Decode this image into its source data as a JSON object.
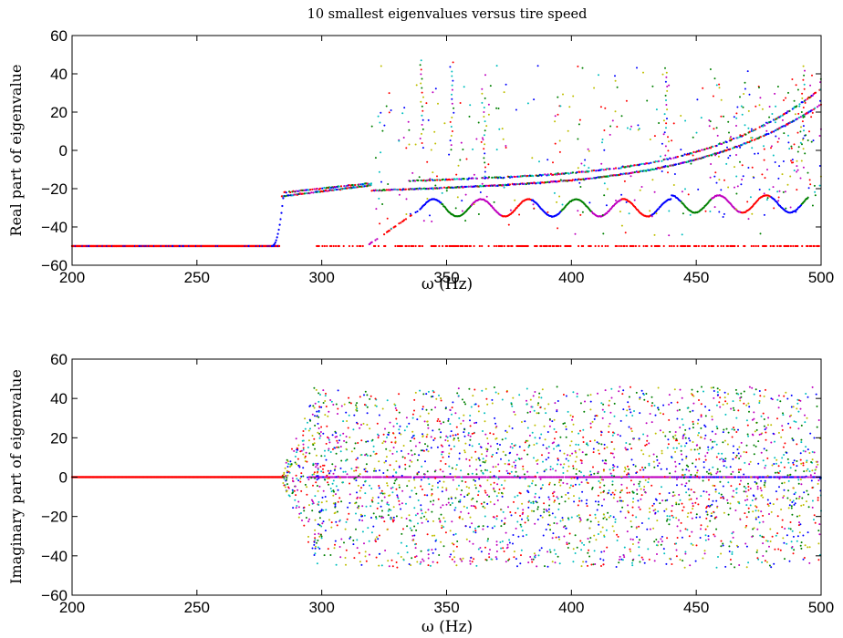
{
  "title": "10 smallest eigenvalues versus tire speed",
  "colors": {
    "palette": [
      "#0000ff",
      "#008000",
      "#ff0000",
      "#00bfbf",
      "#bf00bf",
      "#bfbf00",
      "#404040"
    ]
  },
  "chart_data": [
    {
      "type": "scatter",
      "title": "10 smallest eigenvalues versus tire speed",
      "xlabel": "ω (Hz)",
      "ylabel": "Real part of eigenvalue",
      "xlim": [
        200,
        500
      ],
      "ylim": [
        -60,
        60
      ],
      "xticks": [
        "200",
        "250",
        "300",
        "350",
        "400",
        "450",
        "500"
      ],
      "yticks": [
        "60",
        "40",
        "20",
        "0",
        "−20",
        "−40",
        "−60"
      ],
      "grid": false,
      "series": [
        {
          "x": [
            200,
            220,
            240,
            260,
            282
          ],
          "y": [
            -50,
            -50,
            -50,
            -50,
            -50
          ]
        },
        {
          "x": [
            283,
            287,
            292,
            297,
            300,
            310,
            320,
            330
          ],
          "y": [
            -25,
            -24,
            -23,
            -22,
            -21,
            -20,
            -19,
            -18
          ]
        },
        {
          "x": [
            320,
            340,
            360,
            380,
            400,
            420,
            440,
            460,
            480,
            500
          ],
          "y": [
            -21,
            -17,
            -14,
            -12,
            -10,
            -8,
            -5,
            -2,
            5,
            25
          ]
        },
        {
          "x": [
            320,
            335,
            350,
            365,
            380,
            395,
            410,
            425,
            440,
            455,
            470,
            485,
            500
          ],
          "y": [
            -48,
            -35,
            -38,
            -30,
            -25,
            -28,
            -26,
            -27,
            -25,
            -24,
            -25,
            -22,
            -20
          ]
        },
        {
          "x": [
            300,
            330,
            360,
            390,
            420,
            450,
            480,
            500
          ],
          "y": [
            -50,
            -50,
            -50,
            -50,
            -50,
            -50,
            -50,
            -50
          ]
        }
      ]
    },
    {
      "type": "scatter",
      "xlabel": "ω (Hz)",
      "ylabel": "Imaginary part of eigenvalue",
      "xlim": [
        200,
        500
      ],
      "ylim": [
        -60,
        60
      ],
      "xticks": [
        "200",
        "250",
        "300",
        "350",
        "400",
        "450",
        "500"
      ],
      "yticks": [
        "60",
        "40",
        "20",
        "0",
        "−20",
        "−40",
        "−60"
      ],
      "grid": false,
      "series": [
        {
          "x": [
            200,
            250,
            285,
            300,
            350,
            400,
            450,
            500
          ],
          "y": [
            0,
            0,
            0,
            0,
            0,
            0,
            0,
            0
          ]
        },
        {
          "x": [
            285,
            290,
            295
          ],
          "y": [
            0,
            30,
            -30
          ]
        },
        {
          "x": [
            300,
            350,
            400,
            450,
            500
          ],
          "y": [
            45,
            -45,
            45,
            -45,
            45
          ]
        }
      ]
    }
  ]
}
